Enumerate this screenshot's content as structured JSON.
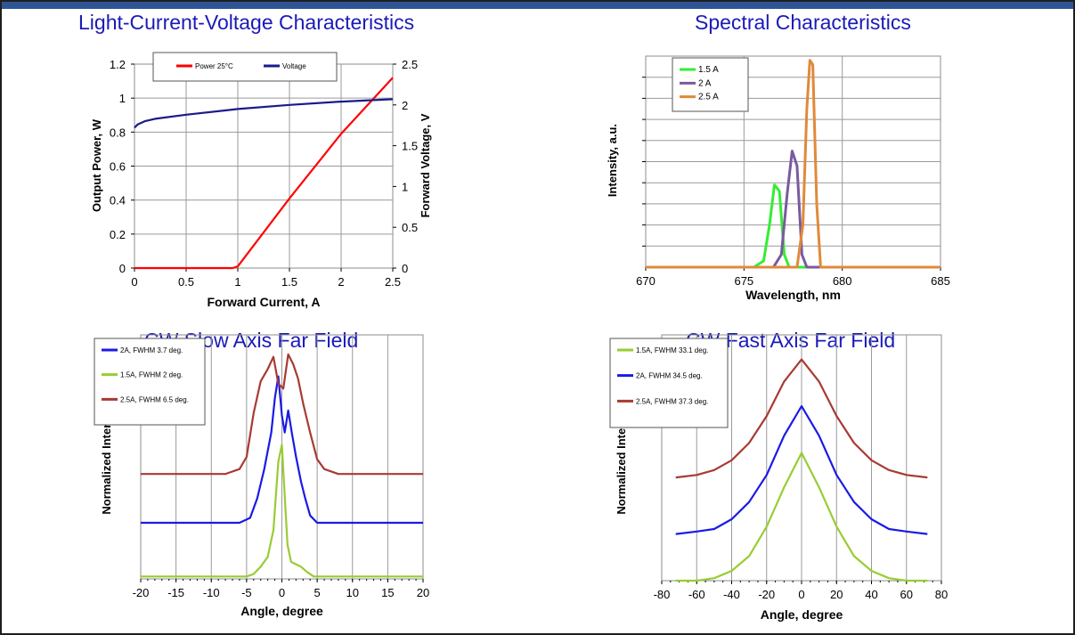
{
  "page": {
    "accent_color": "#1a1ab8",
    "panel_titles": [
      "Light-Current-Voltage Characteristics",
      "Spectral Characteristics",
      "CW Slow Axis Far Field",
      "CW Fast Axis Far Field"
    ]
  },
  "chart_data": [
    {
      "type": "line",
      "title": "Light-Current-Voltage Characteristics",
      "xlabel": "Forward Current, A",
      "ylabel": "Output Power, W",
      "y2label": "Forward Voltage, V",
      "xlim": [
        0,
        2.5
      ],
      "ylim": [
        0,
        1.2
      ],
      "y2lim": [
        0,
        2.5
      ],
      "xticks": [
        "0",
        "0.5",
        "1",
        "1.5",
        "2",
        "2.5"
      ],
      "yticks": [
        "0",
        "0.2",
        "0.4",
        "0.6",
        "0.8",
        "1",
        "1.2"
      ],
      "y2ticks": [
        "0",
        "0.5",
        "1",
        "1.5",
        "2",
        "2.5"
      ],
      "grid": true,
      "legend": "top",
      "series": [
        {
          "name": "Power 25°C",
          "color": "#ff0000",
          "axis": "left",
          "x": [
            0,
            0.5,
            0.95,
            1.0,
            1.5,
            2.0,
            2.5
          ],
          "values": [
            0,
            0,
            0,
            0.01,
            0.41,
            0.79,
            1.12
          ]
        },
        {
          "name": "Voltage",
          "color": "#1a1a8c",
          "axis": "right",
          "x": [
            0,
            0.03,
            0.1,
            0.2,
            0.5,
            1.0,
            1.5,
            2.0,
            2.5
          ],
          "values": [
            1.72,
            1.76,
            1.8,
            1.83,
            1.88,
            1.95,
            2.0,
            2.04,
            2.07
          ]
        }
      ]
    },
    {
      "type": "line",
      "title": "Spectral Characteristics",
      "xlabel": "Wavelength, nm",
      "ylabel": "Intensity, a.u.",
      "xlim": [
        670,
        685
      ],
      "ylim": [
        0,
        1
      ],
      "xticks": [
        "670",
        "675",
        "680",
        "685"
      ],
      "grid": true,
      "legend": "top-left",
      "series": [
        {
          "name": "1.5 A",
          "color": "#33ee33",
          "x": [
            670,
            675.5,
            676.0,
            676.3,
            676.55,
            676.8,
            677.05,
            677.3,
            685
          ],
          "values": [
            0,
            0,
            0.03,
            0.2,
            0.39,
            0.36,
            0.06,
            0,
            0
          ]
        },
        {
          "name": "2 A",
          "color": "#7a5a9e",
          "x": [
            670,
            676.5,
            676.9,
            677.2,
            677.45,
            677.7,
            677.95,
            678.2,
            685
          ],
          "values": [
            0,
            0,
            0.06,
            0.35,
            0.55,
            0.48,
            0.06,
            0,
            0
          ]
        },
        {
          "name": "2.5 A",
          "color": "#e08a3a",
          "x": [
            670,
            677.7,
            678.0,
            678.2,
            678.35,
            678.5,
            678.7,
            678.9,
            685
          ],
          "values": [
            0,
            0,
            0.2,
            0.75,
            0.98,
            0.96,
            0.3,
            0,
            0
          ]
        }
      ]
    },
    {
      "type": "line",
      "title": "CW Slow Axis Far Field",
      "xlabel": "Angle, degree",
      "ylabel": "Normalized Intensity",
      "xlim": [
        -20,
        20
      ],
      "ylim": [
        0,
        1
      ],
      "xticks": [
        "-20",
        "-15",
        "-10",
        "-5",
        "0",
        "5",
        "10",
        "15",
        "20"
      ],
      "grid": true,
      "legend": "top-left",
      "series": [
        {
          "name": "2A, FWHM 3.7 deg.",
          "color": "#1a1ae6",
          "x": [
            -20,
            -6,
            -4.5,
            -3.5,
            -2.5,
            -1.5,
            -1,
            -0.5,
            0,
            0.4,
            0.9,
            1.4,
            2,
            2.7,
            3.3,
            4,
            5,
            20
          ],
          "values": [
            0.23,
            0.23,
            0.25,
            0.33,
            0.45,
            0.6,
            0.74,
            0.83,
            0.67,
            0.6,
            0.69,
            0.6,
            0.5,
            0.4,
            0.33,
            0.26,
            0.23,
            0.23
          ]
        },
        {
          "name": "1.5A, FWHM 2 deg.",
          "color": "#99cc33",
          "x": [
            -20,
            -5,
            -4,
            -3,
            -2,
            -1.2,
            -0.5,
            0,
            0.4,
            0.8,
            1.3,
            2,
            2.7,
            3.5,
            4.5,
            20
          ],
          "values": [
            0.01,
            0.01,
            0.02,
            0.05,
            0.09,
            0.2,
            0.48,
            0.55,
            0.34,
            0.14,
            0.07,
            0.06,
            0.05,
            0.03,
            0.01,
            0.01
          ]
        },
        {
          "name": "2.5A, FWHM 6.5 deg.",
          "color": "#a83a32",
          "x": [
            -20,
            -8,
            -6,
            -5,
            -4,
            -3,
            -2,
            -1.2,
            -0.5,
            0.2,
            0.9,
            1.6,
            2.3,
            3,
            4,
            5,
            6,
            8,
            20
          ],
          "values": [
            0.43,
            0.43,
            0.45,
            0.5,
            0.68,
            0.81,
            0.86,
            0.91,
            0.8,
            0.78,
            0.92,
            0.88,
            0.82,
            0.72,
            0.6,
            0.49,
            0.45,
            0.43,
            0.43
          ]
        }
      ]
    },
    {
      "type": "line",
      "title": "CW Fast Axis Far Field",
      "xlabel": "Angle, degree",
      "ylabel": "Normalized Intensity",
      "xlim": [
        -80,
        80
      ],
      "ylim": [
        0,
        1
      ],
      "xticks": [
        "-80",
        "-60",
        "-40",
        "-20",
        "0",
        "20",
        "40",
        "60",
        "80"
      ],
      "grid": true,
      "legend": "top-left",
      "series": [
        {
          "name": "1.5A, FWHM 33.1 deg.",
          "color": "#99cc33",
          "x": [
            -72,
            -60,
            -50,
            -40,
            -30,
            -20,
            -10,
            0,
            10,
            20,
            30,
            40,
            50,
            60,
            72
          ],
          "values": [
            0,
            0,
            0.01,
            0.04,
            0.1,
            0.22,
            0.38,
            0.52,
            0.38,
            0.22,
            0.1,
            0.04,
            0.01,
            0,
            0
          ]
        },
        {
          "name": "2A, FWHM 34.5 deg.",
          "color": "#1a1ae6",
          "x": [
            -72,
            -60,
            -50,
            -40,
            -30,
            -20,
            -10,
            0,
            10,
            20,
            30,
            40,
            50,
            60,
            72
          ],
          "values": [
            0.19,
            0.2,
            0.21,
            0.25,
            0.32,
            0.43,
            0.59,
            0.71,
            0.59,
            0.43,
            0.32,
            0.25,
            0.21,
            0.2,
            0.19
          ]
        },
        {
          "name": "2.5A, FWHM 37.3 deg.",
          "color": "#a83a32",
          "x": [
            -72,
            -60,
            -50,
            -40,
            -30,
            -20,
            -10,
            0,
            10,
            20,
            30,
            40,
            50,
            60,
            72
          ],
          "values": [
            0.42,
            0.43,
            0.45,
            0.49,
            0.56,
            0.67,
            0.81,
            0.9,
            0.81,
            0.67,
            0.56,
            0.49,
            0.45,
            0.43,
            0.42
          ]
        }
      ]
    }
  ]
}
